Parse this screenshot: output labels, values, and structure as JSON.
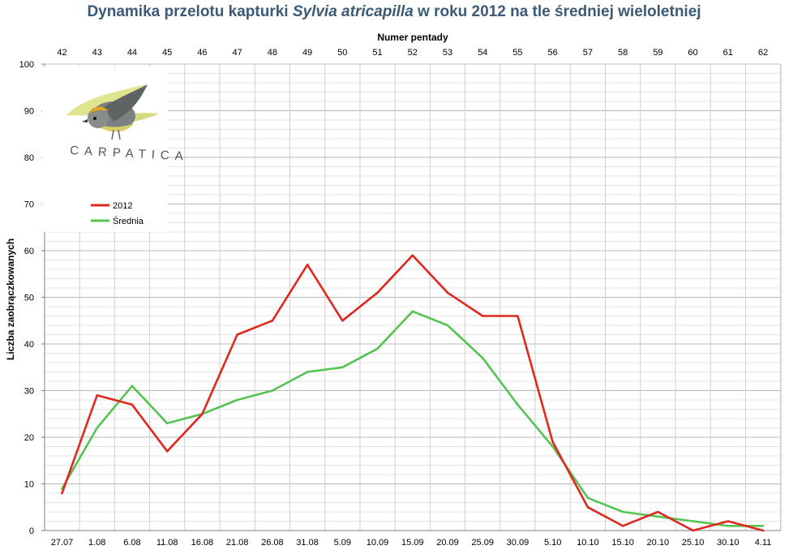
{
  "chart_data": {
    "type": "line",
    "title_parts": {
      "before": "Dynamika przelotu kapturki ",
      "italic": "Sylvia atricapilla",
      "after": " w roku 2012 na tle średniej wieloletniej"
    },
    "xlabel_top": "Numer pentady",
    "ylabel": "Liczba zaobrączkowanych",
    "ylim": [
      0,
      100
    ],
    "yticks": [
      0,
      10,
      20,
      30,
      40,
      50,
      60,
      70,
      80,
      90,
      100
    ],
    "categories_top": [
      "42",
      "43",
      "44",
      "45",
      "46",
      "47",
      "48",
      "49",
      "50",
      "51",
      "52",
      "53",
      "54",
      "55",
      "56",
      "57",
      "58",
      "59",
      "60",
      "61",
      "62"
    ],
    "categories": [
      "27.07",
      "1.08",
      "6.08",
      "11.08",
      "16.08",
      "21.08",
      "26.08",
      "31.08",
      "5.09",
      "10.09",
      "15.09",
      "20.09",
      "25.09",
      "30.09",
      "5.10",
      "10.10",
      "15.10",
      "20.10",
      "25.10",
      "30.10",
      "4.11"
    ],
    "grid": true,
    "legend_position": "top-left",
    "series": [
      {
        "name": "2012",
        "color": "#e0281f",
        "values": [
          8,
          29,
          27,
          17,
          25,
          42,
          45,
          57,
          45,
          51,
          59,
          51,
          46,
          46,
          19,
          5,
          1,
          4,
          0,
          2,
          0
        ]
      },
      {
        "name": "Średnia",
        "color": "#55c452",
        "values": [
          9,
          22,
          31,
          23,
          25,
          28,
          30,
          34,
          35,
          39,
          47,
          44,
          37,
          27,
          18,
          7,
          4,
          3,
          2,
          1,
          1
        ]
      }
    ],
    "logo": {
      "text": "CARPATICA",
      "icon": "bird-logo-icon"
    }
  }
}
